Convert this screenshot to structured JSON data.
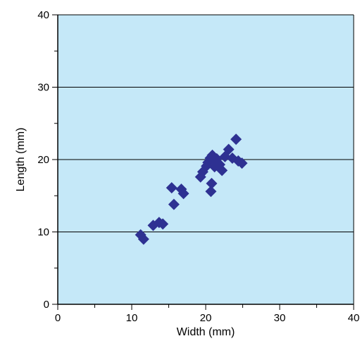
{
  "chart_data": {
    "type": "scatter",
    "xlabel": "Width (mm)",
    "ylabel": "Length (mm)",
    "xlim": [
      0,
      40
    ],
    "ylim": [
      0,
      40
    ],
    "x_ticks": [
      "0",
      "10",
      "20",
      "30",
      "40"
    ],
    "y_ticks": [
      "0",
      "10",
      "20",
      "30",
      "40"
    ],
    "grid": "horizontal major lines",
    "marker": "diamond",
    "colors": {
      "plot_background": "#c5e8f8",
      "marker": "#2e3192",
      "axis": "#000000"
    },
    "series": [
      {
        "points": [
          [
            11.2,
            9.6
          ],
          [
            11.6,
            9.0
          ],
          [
            12.9,
            10.9
          ],
          [
            13.7,
            11.3
          ],
          [
            14.2,
            11.1
          ],
          [
            15.4,
            16.1
          ],
          [
            15.7,
            13.8
          ],
          [
            16.7,
            15.9
          ],
          [
            17.0,
            15.3
          ],
          [
            19.3,
            17.6
          ],
          [
            19.6,
            18.3
          ],
          [
            20.1,
            19.1
          ],
          [
            20.3,
            19.6
          ],
          [
            20.6,
            20.2
          ],
          [
            20.8,
            16.7
          ],
          [
            20.7,
            15.6
          ],
          [
            20.9,
            20.6
          ],
          [
            21.2,
            19.0
          ],
          [
            21.3,
            19.8
          ],
          [
            21.5,
            20.1
          ],
          [
            21.9,
            19.3
          ],
          [
            22.2,
            18.5
          ],
          [
            22.6,
            20.4
          ],
          [
            23.1,
            21.4
          ],
          [
            23.6,
            20.2
          ],
          [
            24.1,
            22.8
          ],
          [
            24.4,
            19.8
          ],
          [
            24.9,
            19.5
          ]
        ]
      }
    ]
  }
}
